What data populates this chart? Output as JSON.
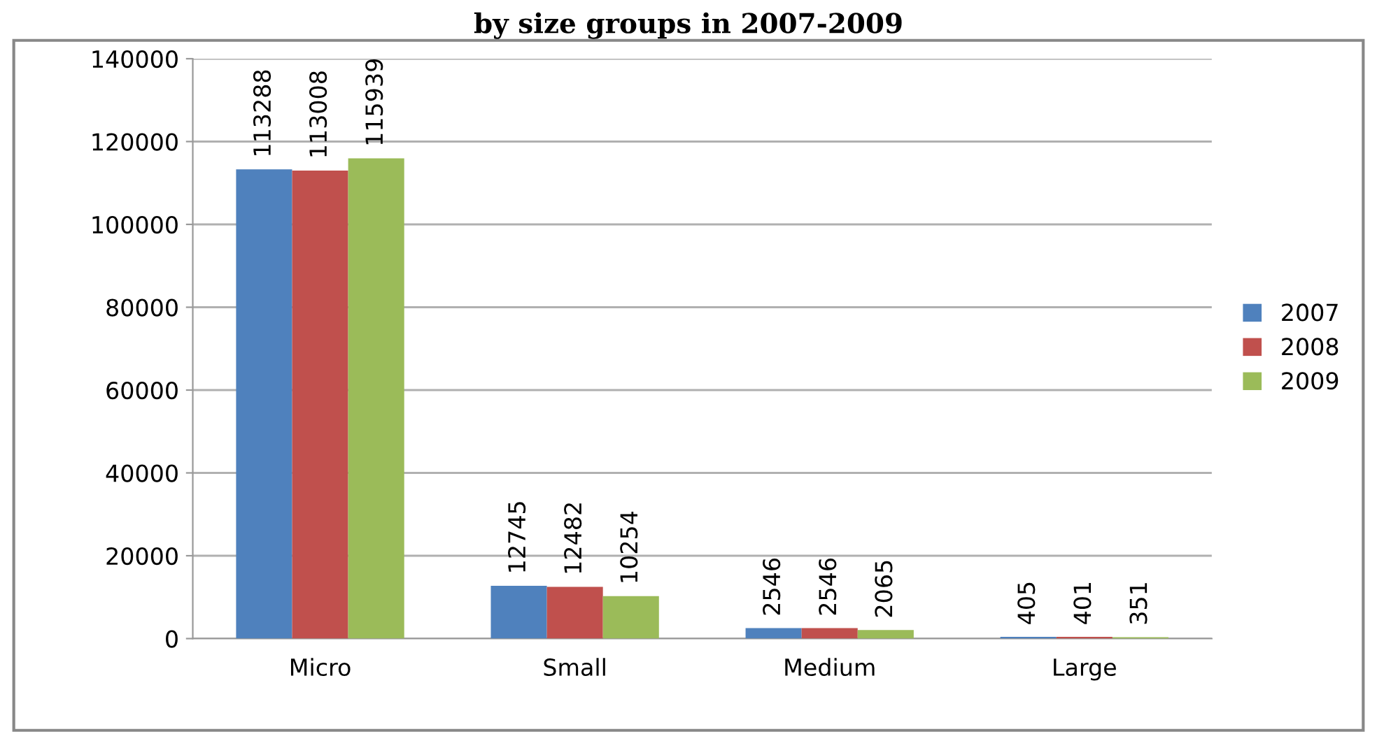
{
  "chart_data": {
    "type": "bar",
    "title": "by size groups in 2007-2009",
    "categories": [
      "Micro",
      "Small",
      "Medium",
      "Large"
    ],
    "series": [
      {
        "name": "2007",
        "color": "#4f81bd",
        "values": [
          113288,
          12745,
          2546,
          405
        ]
      },
      {
        "name": "2008",
        "color": "#c0504d",
        "values": [
          113008,
          12482,
          2546,
          401
        ]
      },
      {
        "name": "2009",
        "color": "#9bbb59",
        "values": [
          115939,
          10254,
          2065,
          351
        ]
      }
    ],
    "ylim": [
      0,
      140000
    ],
    "yticks": [
      0,
      20000,
      40000,
      60000,
      80000,
      100000,
      120000,
      140000
    ],
    "grid": "y",
    "legend": "right",
    "data_labels": true
  }
}
